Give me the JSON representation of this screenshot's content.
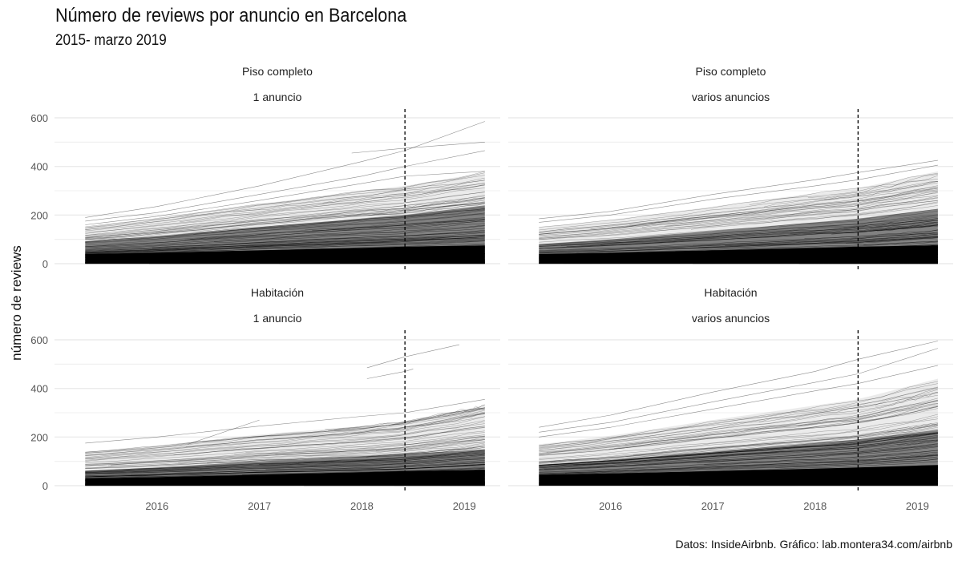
{
  "chart_data": {
    "type": "line",
    "title": "Número de reviews por anuncio en Barcelona",
    "subtitle": "2015- marzo 2019",
    "ylabel": "número de reviews",
    "xlabel": "",
    "caption": "Datos: InsideAirbnb. Gráfico: lab.montera34.com/airbnb",
    "x_range": [
      2015.0,
      2019.35
    ],
    "x_ticks": [
      "2016",
      "2017",
      "2018",
      "2019"
    ],
    "y_range": [
      0,
      620
    ],
    "y_ticks": [
      "0",
      "200",
      "400",
      "600"
    ],
    "vline_x": 2018.42,
    "vline_style": "dashed",
    "grid": true,
    "line_color": "#000000",
    "panels": [
      {
        "strip_top": "Piso completo",
        "strip_bottom": "1 anuncio",
        "start": 2015.3,
        "end": 2019.2,
        "series_top": [
          {
            "name": "",
            "values": [
              [
                2015.3,
                190
              ],
              [
                2016.0,
                235
              ],
              [
                2017.0,
                320
              ],
              [
                2018.0,
                420
              ],
              [
                2018.42,
                465
              ],
              [
                2019.2,
                585
              ]
            ]
          },
          {
            "name": "",
            "values": [
              [
                2017.9,
                455
              ],
              [
                2018.42,
                475
              ],
              [
                2019.2,
                500
              ]
            ]
          },
          {
            "name": "",
            "values": [
              [
                2015.3,
                175
              ],
              [
                2016.0,
                210
              ],
              [
                2017.0,
                285
              ],
              [
                2018.0,
                360
              ],
              [
                2018.42,
                400
              ],
              [
                2019.2,
                465
              ]
            ]
          },
          {
            "name": "",
            "values": [
              [
                2015.3,
                160
              ],
              [
                2016.0,
                195
              ],
              [
                2017.0,
                260
              ],
              [
                2018.0,
                330
              ],
              [
                2018.42,
                360
              ],
              [
                2019.2,
                380
              ]
            ]
          }
        ],
        "envelope_top": [
          [
            2015.3,
            150
          ],
          [
            2016.0,
            185
          ],
          [
            2017.0,
            245
          ],
          [
            2018.0,
            300
          ],
          [
            2018.42,
            320
          ],
          [
            2019.2,
            375
          ]
        ],
        "envelope_dense": [
          [
            2015.3,
            90
          ],
          [
            2016.0,
            110
          ],
          [
            2017.0,
            150
          ],
          [
            2018.0,
            185
          ],
          [
            2018.42,
            200
          ],
          [
            2019.2,
            240
          ]
        ],
        "envelope_solid": [
          [
            2015.3,
            40
          ],
          [
            2016.0,
            45
          ],
          [
            2017.0,
            55
          ],
          [
            2018.0,
            65
          ],
          [
            2018.42,
            70
          ],
          [
            2019.2,
            75
          ]
        ]
      },
      {
        "strip_top": "Piso completo",
        "strip_bottom": "varios anuncios",
        "start": 2015.3,
        "end": 2019.2,
        "series_top": [
          {
            "name": "",
            "values": [
              [
                2015.3,
                185
              ],
              [
                2016.0,
                215
              ],
              [
                2017.0,
                285
              ],
              [
                2018.0,
                345
              ],
              [
                2018.42,
                375
              ],
              [
                2019.2,
                425
              ]
            ]
          },
          {
            "name": "",
            "values": [
              [
                2015.3,
                170
              ],
              [
                2016.0,
                200
              ],
              [
                2017.0,
                265
              ],
              [
                2018.0,
                320
              ],
              [
                2018.42,
                345
              ],
              [
                2019.2,
                405
              ]
            ]
          }
        ],
        "envelope_top": [
          [
            2015.3,
            150
          ],
          [
            2016.0,
            180
          ],
          [
            2017.0,
            235
          ],
          [
            2018.0,
            290
          ],
          [
            2018.42,
            310
          ],
          [
            2019.2,
            380
          ]
        ],
        "envelope_dense": [
          [
            2015.3,
            80
          ],
          [
            2016.0,
            100
          ],
          [
            2017.0,
            135
          ],
          [
            2018.0,
            170
          ],
          [
            2018.42,
            185
          ],
          [
            2019.2,
            225
          ]
        ],
        "envelope_solid": [
          [
            2015.3,
            40
          ],
          [
            2016.0,
            45
          ],
          [
            2017.0,
            55
          ],
          [
            2018.0,
            65
          ],
          [
            2018.42,
            70
          ],
          [
            2019.2,
            75
          ]
        ]
      },
      {
        "strip_top": "Habitación",
        "strip_bottom": "1 anuncio",
        "start": 2015.3,
        "end": 2019.2,
        "series_top": [
          {
            "name": "",
            "values": [
              [
                2018.05,
                485
              ],
              [
                2018.42,
                530
              ],
              [
                2018.95,
                580
              ]
            ]
          },
          {
            "name": "",
            "values": [
              [
                2018.05,
                440
              ],
              [
                2018.42,
                470
              ],
              [
                2018.5,
                480
              ]
            ]
          },
          {
            "name": "",
            "values": [
              [
                2016.3,
                170
              ],
              [
                2017.0,
                270
              ]
            ]
          },
          {
            "name": "",
            "values": [
              [
                2015.3,
                175
              ],
              [
                2016.0,
                200
              ],
              [
                2017.0,
                245
              ],
              [
                2018.0,
                285
              ],
              [
                2018.42,
                300
              ],
              [
                2019.2,
                355
              ]
            ]
          }
        ],
        "envelope_top": [
          [
            2015.3,
            140
          ],
          [
            2016.0,
            165
          ],
          [
            2017.0,
            210
          ],
          [
            2018.0,
            245
          ],
          [
            2018.42,
            265
          ],
          [
            2019.2,
            330
          ]
        ],
        "envelope_dense": [
          [
            2015.3,
            60
          ],
          [
            2016.0,
            75
          ],
          [
            2017.0,
            100
          ],
          [
            2018.0,
            120
          ],
          [
            2018.42,
            130
          ],
          [
            2019.2,
            150
          ]
        ],
        "envelope_solid": [
          [
            2015.3,
            30
          ],
          [
            2016.0,
            35
          ],
          [
            2017.0,
            45
          ],
          [
            2018.0,
            55
          ],
          [
            2018.42,
            60
          ],
          [
            2019.2,
            65
          ]
        ]
      },
      {
        "strip_top": "Habitación",
        "strip_bottom": "varios anuncios",
        "start": 2015.3,
        "end": 2019.2,
        "series_top": [
          {
            "name": "",
            "values": [
              [
                2015.3,
                240
              ],
              [
                2016.0,
                290
              ],
              [
                2017.0,
                385
              ],
              [
                2018.0,
                470
              ],
              [
                2018.42,
                520
              ],
              [
                2019.2,
                595
              ]
            ]
          },
          {
            "name": "",
            "values": [
              [
                2015.3,
                220
              ],
              [
                2016.0,
                260
              ],
              [
                2017.0,
                345
              ],
              [
                2018.0,
                425
              ],
              [
                2018.42,
                460
              ],
              [
                2019.2,
                565
              ]
            ]
          },
          {
            "name": "",
            "values": [
              [
                2015.3,
                200
              ],
              [
                2016.0,
                240
              ],
              [
                2017.0,
                315
              ],
              [
                2018.0,
                390
              ],
              [
                2018.42,
                420
              ],
              [
                2019.2,
                495
              ]
            ]
          }
        ],
        "envelope_top": [
          [
            2015.3,
            170
          ],
          [
            2016.0,
            205
          ],
          [
            2017.0,
            270
          ],
          [
            2018.0,
            330
          ],
          [
            2018.42,
            355
          ],
          [
            2019.2,
            440
          ]
        ],
        "envelope_dense": [
          [
            2015.3,
            85
          ],
          [
            2016.0,
            105
          ],
          [
            2017.0,
            140
          ],
          [
            2018.0,
            175
          ],
          [
            2018.42,
            190
          ],
          [
            2019.2,
            230
          ]
        ],
        "envelope_solid": [
          [
            2015.3,
            45
          ],
          [
            2016.0,
            50
          ],
          [
            2017.0,
            60
          ],
          [
            2018.0,
            70
          ],
          [
            2018.42,
            75
          ],
          [
            2019.2,
            85
          ]
        ]
      }
    ]
  }
}
